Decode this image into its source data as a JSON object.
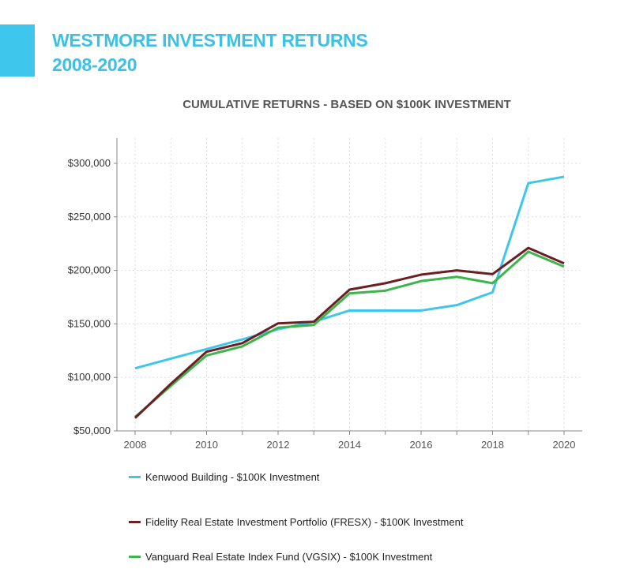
{
  "header": {
    "title_line1": "WESTMORE INVESTMENT RETURNS",
    "title_line2": "2008-2020",
    "accent_color": "#3ec6ec"
  },
  "chart_data": {
    "type": "line",
    "title": "CUMULATIVE RETURNS - BASED ON $100K INVESTMENT",
    "xlabel": "",
    "ylabel": "",
    "x": [
      2008,
      2009,
      2010,
      2011,
      2012,
      2013,
      2014,
      2015,
      2016,
      2017,
      2018,
      2019,
      2020
    ],
    "xticks": [
      "2008",
      "2010",
      "2012",
      "2014",
      "2016",
      "2018",
      "2020"
    ],
    "yticks": [
      "$50,000",
      "$100,000",
      "$150,000",
      "$200,000",
      "$250,000",
      "$300,000"
    ],
    "ylim": [
      50000,
      325000
    ],
    "xlim": [
      2008,
      2020.5
    ],
    "grid": true,
    "legend_position": "bottom",
    "series": [
      {
        "name": "Kenwood Building - $100K Investment",
        "color": "#3ec6ec",
        "values": [
          108500,
          117500,
          126500,
          135500,
          145000,
          152000,
          162500,
          162500,
          162500,
          167500,
          179500,
          281500,
          287500
        ]
      },
      {
        "name": "Fidelity Real Estate Investment Portfolio (FRESX) - $100K Investment",
        "color": "#6b1f24",
        "values": [
          62000,
          94000,
          124000,
          132000,
          150500,
          152000,
          182000,
          188000,
          196000,
          200000,
          196500,
          221000,
          206500
        ]
      },
      {
        "name": "Vanguard Real Estate Index Fund (VGSIX) - $100K Investment",
        "color": "#3cb54a",
        "values": [
          63000,
          92000,
          120500,
          129000,
          146500,
          149000,
          178500,
          181000,
          190000,
          194000,
          188000,
          217500,
          203500
        ]
      }
    ]
  }
}
